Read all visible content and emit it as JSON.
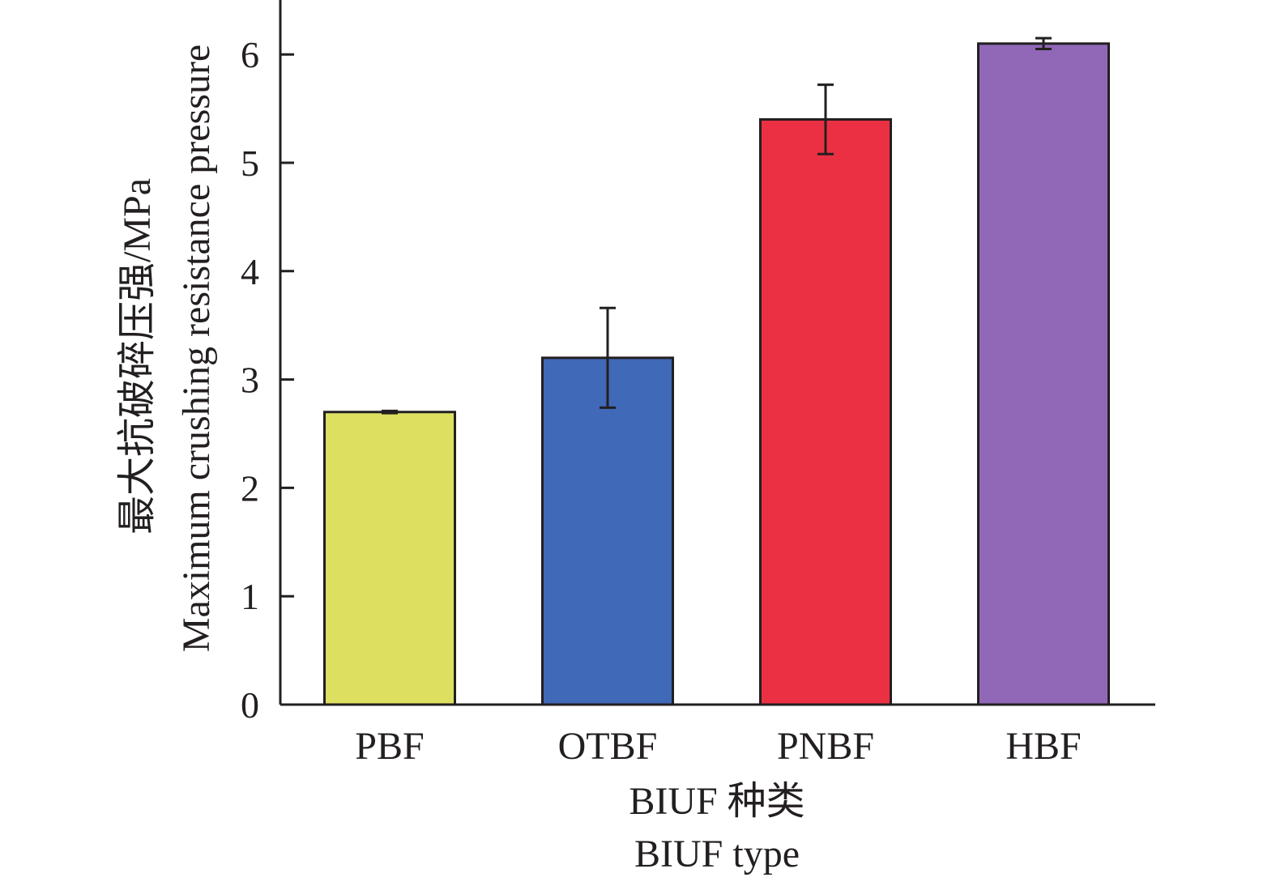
{
  "chart_data": {
    "type": "bar",
    "title": "",
    "categories": [
      "PBF",
      "OTBF",
      "PNBF",
      "HBF"
    ],
    "values": [
      2.7,
      3.2,
      5.4,
      6.1
    ],
    "errors": [
      0.01,
      0.46,
      0.32,
      0.05
    ],
    "colors": [
      "#dcdf60",
      "#4069b8",
      "#ec3044",
      "#9168b8"
    ],
    "xlabel_lines": [
      "BIUF 种类",
      "BIUF type"
    ],
    "ylabel_lines": [
      "最大抗破碎压强/MPa",
      "Maximum crushing resistance pressure"
    ],
    "ylim": [
      0,
      6.5
    ],
    "yticks": [
      0,
      1,
      2,
      3,
      4,
      5,
      6
    ],
    "grid": false,
    "legend": "none",
    "axis_color": "#231f20"
  }
}
